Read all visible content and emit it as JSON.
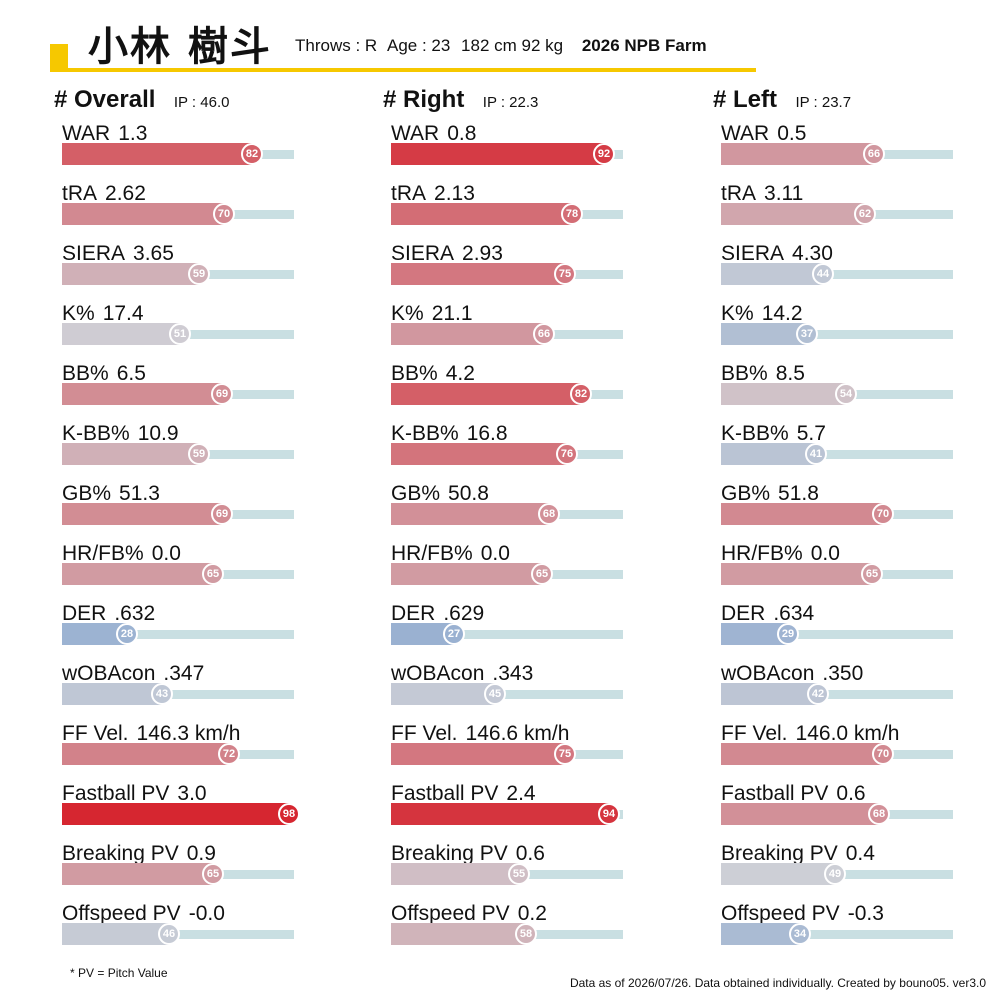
{
  "header": {
    "player_name": "小林 樹斗",
    "throws": "Throws : R",
    "age": "Age : 23",
    "size": "182 cm 92 kg",
    "season": "2026 NPB Farm",
    "accent_color": "#F6C800"
  },
  "panels": [
    {
      "title": "# Overall",
      "ip": "IP : 46.0"
    },
    {
      "title": "# Right",
      "ip": "IP : 22.3"
    },
    {
      "title": "# Left",
      "ip": "IP : 23.7"
    }
  ],
  "chart_data": {
    "type": "bar",
    "percentile_range": [
      0,
      100
    ],
    "color_scale": {
      "low": "#8aa8d0",
      "mid": "#cfd0d6",
      "high": "#d62630"
    },
    "metrics": [
      {
        "label": "WAR",
        "overall": {
          "value": "1.3",
          "pct": 82
        },
        "right": {
          "value": "0.8",
          "pct": 92
        },
        "left": {
          "value": "0.5",
          "pct": 66
        }
      },
      {
        "label": "tRA",
        "overall": {
          "value": "2.62",
          "pct": 70
        },
        "right": {
          "value": "2.13",
          "pct": 78
        },
        "left": {
          "value": "3.11",
          "pct": 62
        }
      },
      {
        "label": "SIERA",
        "overall": {
          "value": "3.65",
          "pct": 59
        },
        "right": {
          "value": "2.93",
          "pct": 75
        },
        "left": {
          "value": "4.30",
          "pct": 44
        }
      },
      {
        "label": "K%",
        "overall": {
          "value": "17.4",
          "pct": 51
        },
        "right": {
          "value": "21.1",
          "pct": 66
        },
        "left": {
          "value": "14.2",
          "pct": 37
        }
      },
      {
        "label": "BB%",
        "overall": {
          "value": "6.5",
          "pct": 69
        },
        "right": {
          "value": "4.2",
          "pct": 82
        },
        "left": {
          "value": "8.5",
          "pct": 54
        }
      },
      {
        "label": "K-BB%",
        "overall": {
          "value": "10.9",
          "pct": 59
        },
        "right": {
          "value": "16.8",
          "pct": 76
        },
        "left": {
          "value": "5.7",
          "pct": 41
        }
      },
      {
        "label": "GB%",
        "overall": {
          "value": "51.3",
          "pct": 69
        },
        "right": {
          "value": "50.8",
          "pct": 68
        },
        "left": {
          "value": "51.8",
          "pct": 70
        }
      },
      {
        "label": "HR/FB%",
        "overall": {
          "value": "0.0",
          "pct": 65
        },
        "right": {
          "value": "0.0",
          "pct": 65
        },
        "left": {
          "value": "0.0",
          "pct": 65
        }
      },
      {
        "label": "DER",
        "overall": {
          "value": ".632",
          "pct": 28
        },
        "right": {
          "value": ".629",
          "pct": 27
        },
        "left": {
          "value": ".634",
          "pct": 29
        }
      },
      {
        "label": "wOBAcon",
        "overall": {
          "value": ".347",
          "pct": 43
        },
        "right": {
          "value": ".343",
          "pct": 45
        },
        "left": {
          "value": ".350",
          "pct": 42
        }
      },
      {
        "label": "FF Vel.",
        "overall": {
          "value": "146.3 km/h",
          "pct": 72
        },
        "right": {
          "value": "146.6 km/h",
          "pct": 75
        },
        "left": {
          "value": "146.0 km/h",
          "pct": 70
        }
      },
      {
        "label": "Fastball PV",
        "overall": {
          "value": "3.0",
          "pct": 98
        },
        "right": {
          "value": "2.4",
          "pct": 94
        },
        "left": {
          "value": "0.6",
          "pct": 68
        }
      },
      {
        "label": "Breaking PV",
        "overall": {
          "value": "0.9",
          "pct": 65
        },
        "right": {
          "value": "0.6",
          "pct": 55
        },
        "left": {
          "value": "0.4",
          "pct": 49
        }
      },
      {
        "label": "Offspeed PV",
        "overall": {
          "value": "-0.0",
          "pct": 46
        },
        "right": {
          "value": "0.2",
          "pct": 58
        },
        "left": {
          "value": "-0.3",
          "pct": 34
        }
      }
    ]
  },
  "footer": {
    "note": "* PV = Pitch Value",
    "credits": "Data as of 2026/07/26. Data obtained individually. Created by bouno05.  ver3.0"
  }
}
